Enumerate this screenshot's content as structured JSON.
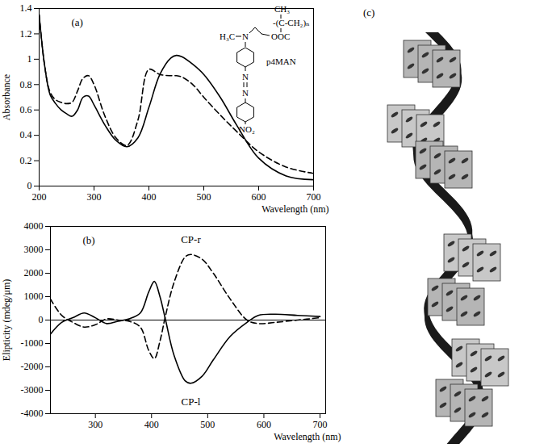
{
  "chart_data": [
    {
      "type": "line",
      "title": "(a)",
      "x_label": "Wavelength (nm)",
      "y_label": "Absorbance",
      "x": [
        200,
        210,
        220,
        230,
        240,
        250,
        260,
        270,
        280,
        290,
        300,
        320,
        340,
        360,
        380,
        400,
        420,
        440,
        450,
        460,
        480,
        500,
        530,
        560,
        600,
        650,
        700
      ],
      "series": [
        {
          "color": "#000000",
          "line_style": "solid",
          "values": [
            1.35,
            0.95,
            0.72,
            0.65,
            0.6,
            0.57,
            0.55,
            0.6,
            0.7,
            0.71,
            0.64,
            0.48,
            0.36,
            0.31,
            0.38,
            0.62,
            0.88,
            1.01,
            1.03,
            1.02,
            0.96,
            0.88,
            0.7,
            0.48,
            0.22,
            0.08,
            0.05
          ]
        },
        {
          "color": "#000000",
          "line_style": "dashed",
          "values": [
            1.35,
            0.95,
            0.74,
            0.68,
            0.66,
            0.65,
            0.66,
            0.75,
            0.85,
            0.87,
            0.8,
            0.55,
            0.38,
            0.32,
            0.52,
            0.92,
            0.88,
            0.87,
            0.87,
            0.86,
            0.8,
            0.7,
            0.56,
            0.43,
            0.27,
            0.15,
            0.1
          ]
        }
      ],
      "xlim": [
        200,
        700
      ],
      "xticks": [
        200,
        300,
        400,
        500,
        600,
        700
      ],
      "ylim": [
        0,
        1.4
      ],
      "yticks": [
        0,
        0.2,
        0.4,
        0.6,
        0.8,
        1,
        1.2,
        1.4
      ],
      "structure": {
        "name": "p4MAN",
        "labels": [
          "CH₃",
          "-(C-CH₂)ₙ",
          "OOC",
          "H₃C",
          "N",
          "N",
          "N",
          "NO₂"
        ]
      }
    },
    {
      "type": "line",
      "title": "(b)",
      "x_label": "Wavelength (nm)",
      "y_label": "Elipticity (mdeg/μm)",
      "x": [
        220,
        240,
        260,
        280,
        300,
        320,
        340,
        360,
        380,
        395,
        405,
        415,
        425,
        440,
        460,
        470,
        490,
        510,
        540,
        570,
        590,
        620,
        660,
        700
      ],
      "series": [
        {
          "color": "#000000",
          "line_style": "solid",
          "values": [
            -600,
            -100,
            100,
            300,
            100,
            -150,
            -50,
            50,
            300,
            1200,
            1650,
            1000,
            0,
            -1500,
            -2600,
            -2700,
            -2400,
            -1700,
            -700,
            -100,
            200,
            250,
            200,
            150
          ]
        },
        {
          "color": "#000000",
          "line_style": "dashed",
          "values": [
            900,
            200,
            -100,
            -300,
            -200,
            50,
            0,
            -50,
            -300,
            -1300,
            -1650,
            -900,
            200,
            1600,
            2700,
            2800,
            2600,
            2000,
            900,
            0,
            -150,
            -100,
            0,
            100
          ]
        }
      ],
      "xlim": [
        220,
        710
      ],
      "xticks": [
        300,
        400,
        500,
        600,
        700
      ],
      "ylim": [
        -4000,
        4000
      ],
      "yticks": [
        -4000,
        -3000,
        -2000,
        -1000,
        0,
        1000,
        2000,
        3000,
        4000
      ],
      "annotations": [
        {
          "text": "CP-r",
          "x": 470,
          "y": 3450
        },
        {
          "text": "CP-l",
          "x": 470,
          "y": -3500
        }
      ]
    }
  ],
  "diagram": {
    "label": "(c)"
  }
}
